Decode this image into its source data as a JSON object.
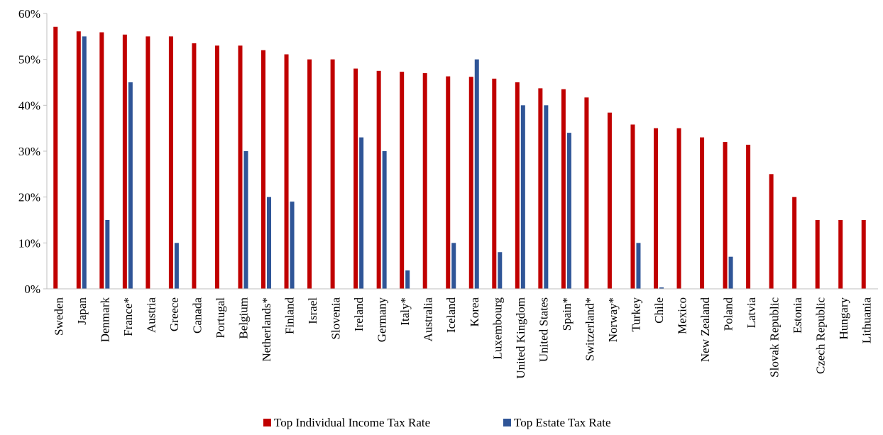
{
  "colors": {
    "income": "#c00000",
    "estate": "#2f5597",
    "axis": "#bfbfbf"
  },
  "chart_data": {
    "type": "bar",
    "categories": [
      "Sweden",
      "Japan",
      "Denmark",
      "France*",
      "Austria",
      "Greece",
      "Canada",
      "Portugal",
      "Belgium",
      "Netherlands*",
      "Finland",
      "Israel",
      "Slovenia",
      "Ireland",
      "Germany",
      "Italy*",
      "Australia",
      "Iceland",
      "Korea",
      "Luxembourg",
      "United Kingdom",
      "United States",
      "Spain*",
      "Switzerland*",
      "Norway*",
      "Turkey",
      "Chile",
      "Mexico",
      "New Zealand",
      "Poland",
      "Latvia",
      "Slovak Republic",
      "Estonia",
      "Czech Republic",
      "Hungary",
      "Lithuania"
    ],
    "series": [
      {
        "name": "Top Individual Income Tax Rate",
        "color": "#c00000",
        "values": [
          57.1,
          56.1,
          55.9,
          55.4,
          55.0,
          55.0,
          53.5,
          53.0,
          53.0,
          52.0,
          51.1,
          50.0,
          50.0,
          48.0,
          47.5,
          47.3,
          47.0,
          46.3,
          46.2,
          45.8,
          45.0,
          43.7,
          43.5,
          41.7,
          38.4,
          35.8,
          35.0,
          35.0,
          33.0,
          32.0,
          31.4,
          25.0,
          20.0,
          15.0,
          15.0,
          15.0
        ]
      },
      {
        "name": "Top Estate Tax Rate",
        "color": "#2f5597",
        "values": [
          0,
          55,
          15,
          45,
          0,
          10,
          0,
          0,
          30,
          20,
          19,
          0,
          0,
          33,
          30,
          4,
          0,
          10,
          50,
          8,
          40,
          40,
          34,
          0,
          0,
          10,
          0.3,
          0,
          0,
          7,
          0,
          0,
          0,
          0,
          0,
          0
        ]
      }
    ],
    "yticks": [
      "0%",
      "10%",
      "20%",
      "30%",
      "40%",
      "50%",
      "60%"
    ],
    "ylim": [
      0,
      60
    ],
    "title": "",
    "xlabel": "",
    "ylabel": "",
    "legend_position": "bottom-center",
    "grid": false
  },
  "legend": {
    "items": [
      "Top Individual Income Tax Rate",
      "Top Estate Tax Rate"
    ]
  }
}
